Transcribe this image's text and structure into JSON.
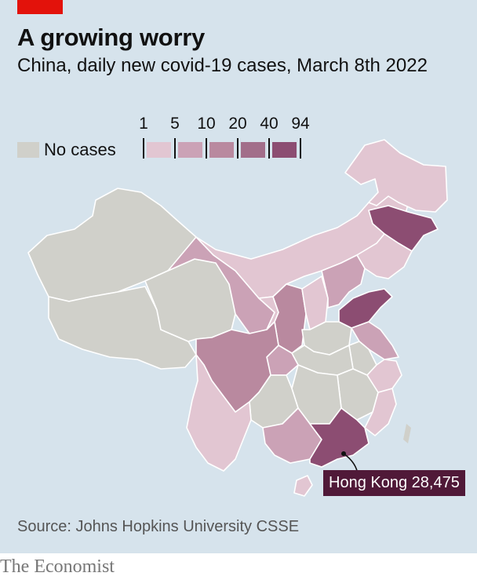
{
  "header": {
    "title": "A growing worry",
    "subtitle": "China, daily new covid-19 cases, March 8th 2022"
  },
  "legend": {
    "no_cases_label": "No cases",
    "no_cases_color": "#d0d0ca",
    "ticks": [
      "1",
      "5",
      "10",
      "20",
      "40",
      "94"
    ],
    "bins": [
      {
        "from": 1,
        "to": 5,
        "color": "#e2c6d2"
      },
      {
        "from": 5,
        "to": 10,
        "color": "#cba2b6"
      },
      {
        "from": 10,
        "to": 20,
        "color": "#b9899f"
      },
      {
        "from": 20,
        "to": 40,
        "color": "#a26e8a"
      },
      {
        "from": 40,
        "to": 94,
        "color": "#8c4d72"
      }
    ]
  },
  "callout": {
    "name": "Hong Kong",
    "value": "28,475",
    "color": "#501938"
  },
  "footer": {
    "source": "Source: Johns Hopkins University CSSE",
    "brand": "The Economist"
  },
  "colors": {
    "background": "#d6e3ec",
    "accent": "#e3120b",
    "border": "#ffffff"
  }
}
